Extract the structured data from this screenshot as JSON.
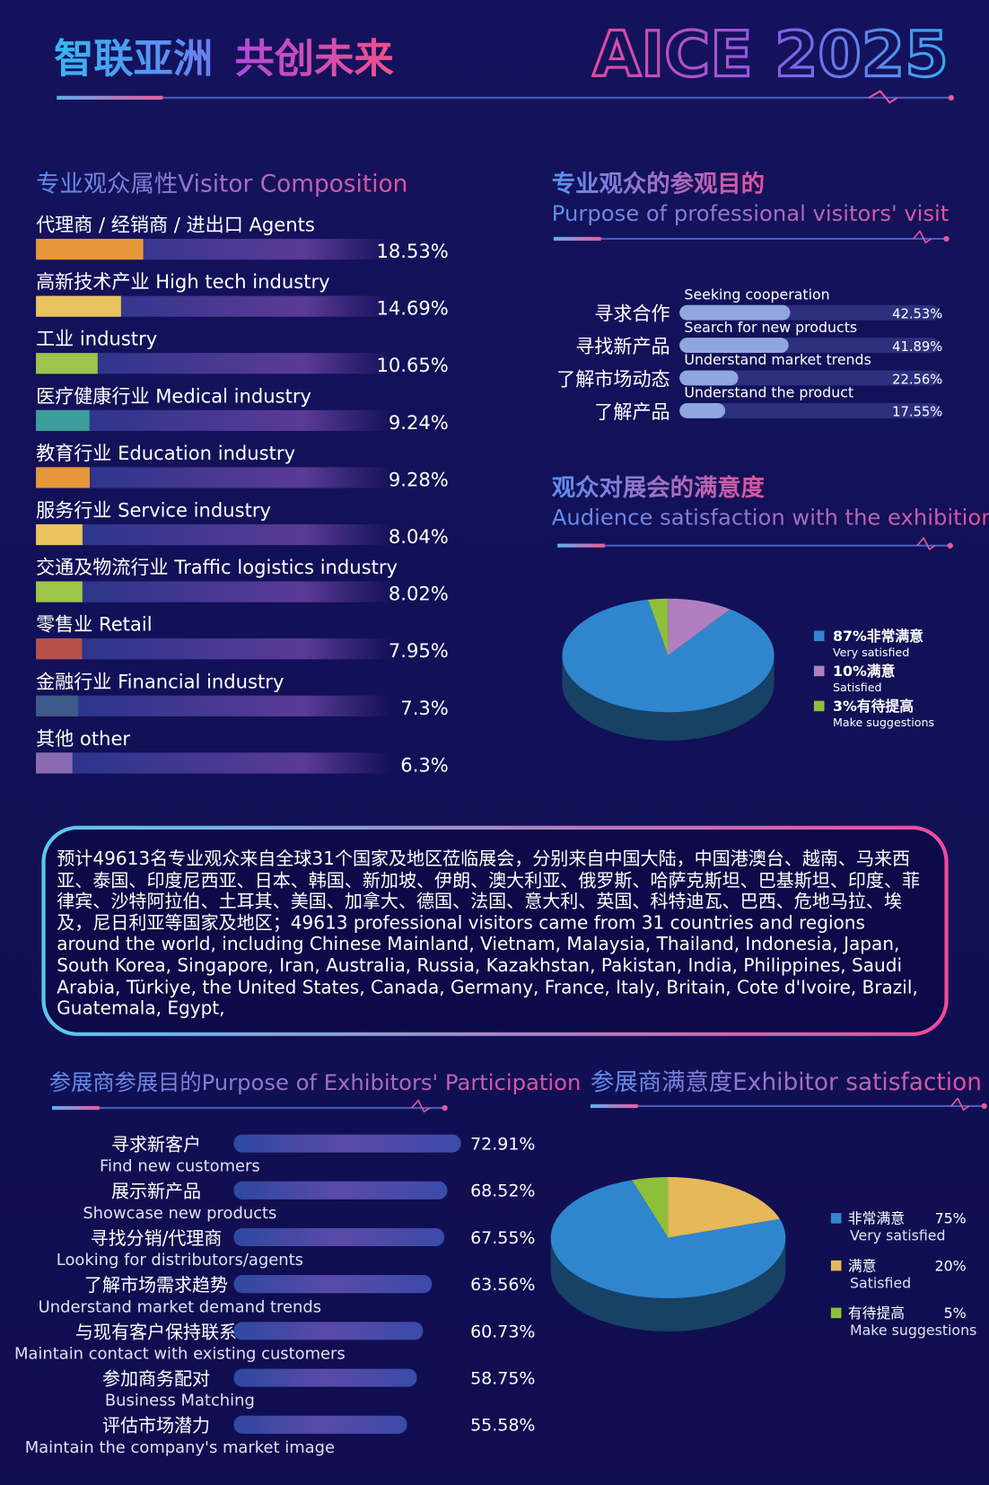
{
  "header": {
    "slogan": [
      "智联亚洲",
      "共创未来"
    ],
    "logo": "AICE 2025"
  },
  "chart_data": [
    {
      "type": "bar",
      "title": "专业观众属性Visitor Composition",
      "categories": [
        "代理商 / 经销商 / 进出口 Agents",
        "高新技术产业 High tech industry",
        "工业 industry",
        "医疗健康行业 Medical industry",
        "教育行业 Education industry",
        "服务行业 Service industry",
        "交通及物流行业 Traffic logistics industry",
        "零售业 Retail",
        "金融行业 Financial industry",
        "其他 other"
      ],
      "values": [
        18.53,
        14.69,
        10.65,
        9.24,
        9.28,
        8.04,
        8.02,
        7.95,
        7.3,
        6.3
      ],
      "value_labels": [
        "18.53%",
        "14.69%",
        "10.65%",
        "9.24%",
        "9.28%",
        "8.04%",
        "8.02%",
        "7.95%",
        "7.3%",
        "6.3%"
      ],
      "colors": [
        "#e8963a",
        "#e9c35e",
        "#9ec44a",
        "#3a9e9a",
        "#e8963a",
        "#e9c35e",
        "#9ec44a",
        "#b8504a",
        "#3e5a8a",
        "#8a6ab0"
      ],
      "xlim": [
        0,
        60
      ]
    },
    {
      "type": "bar",
      "title": "专业观众的参观目的",
      "subtitle": "Purpose of professional visitors' visit",
      "categories": [
        "寻求合作",
        "寻找新产品",
        "了解市场动态",
        "了解产品"
      ],
      "categories_en": [
        "Seeking cooperation",
        "Search for new products",
        "Understand market trends",
        "Understand the product"
      ],
      "values": [
        42.53,
        41.89,
        22.56,
        17.55
      ],
      "value_labels": [
        "42.53%",
        "41.89%",
        "22.56%",
        "17.55%"
      ],
      "color": "#8fa6df",
      "xlim": [
        0,
        100
      ]
    },
    {
      "type": "pie",
      "title": "观众对展会的满意度",
      "subtitle": "Audience satisfaction with the exhibition",
      "categories": [
        "87%非常满意",
        "10%满意",
        "3%有待提高"
      ],
      "categories_en": [
        "Very satisfied",
        "Satisfied",
        "Make suggestions"
      ],
      "values": [
        87,
        10,
        3
      ],
      "colors": [
        "#2f86cf",
        "#b07fc0",
        "#8fbf3a"
      ]
    },
    {
      "type": "bar",
      "title": "参展商参展目的Purpose of Exhibitors' Participation",
      "categories": [
        "寻求新客户",
        "展示新产品",
        "寻找分销/代理商",
        "了解市场需求趋势",
        "与现有客户保持联系",
        "参加商务配对",
        "评估市场潜力"
      ],
      "categories_en": [
        "Find new customers",
        "Showcase new products",
        "Looking for distributors/agents",
        "Understand market demand trends",
        "Maintain contact with existing customers",
        "Business Matching",
        "Maintain the company's market image"
      ],
      "values": [
        72.91,
        68.52,
        67.55,
        63.56,
        60.73,
        58.75,
        55.58
      ],
      "value_labels": [
        "72.91%",
        "68.52%",
        "67.55%",
        "63.56%",
        "60.73%",
        "58.75%",
        "55.58%"
      ],
      "xlim": [
        0,
        75
      ]
    },
    {
      "type": "pie",
      "title": "参展商满意度Exhibitor satisfaction",
      "categories": [
        "非常满意",
        "满意",
        "有待提高"
      ],
      "categories_en": [
        "Very satisfied",
        "Satisfied",
        "Make suggestions"
      ],
      "values": [
        75,
        20,
        5
      ],
      "value_labels": [
        "75%",
        "20%",
        "5%"
      ],
      "colors": [
        "#2f86cf",
        "#e6b85a",
        "#8fbf3a"
      ]
    }
  ],
  "paragraph": "预计49613名专业观众来自全球31个国家及地区莅临展会，分别来自中国大陆，中国港澳台、越南、马来西亚、泰国、印度尼西亚、日本、韩国、新加坡、伊朗、澳大利亚、俄罗斯、哈萨克斯坦、巴基斯坦、印度、菲律宾、沙特阿拉伯、土耳其、美国、加拿大、德国、法国、意大利、英国、科特迪瓦、巴西、危地马拉、埃及，尼日利亚等国家及地区；49613 professional visitors came from 31 countries and regions around the world, including Chinese Mainland, Vietnam, Malaysia, Thailand, Indonesia, Japan, South Korea, Singapore, Iran, Australia, Russia, Kazakhstan, Pakistan, India, Philippines, Saudi Arabia, Türkiye, the United States, Canada, Germany, France, Italy, Britain, Cote d'Ivoire, Brazil, Guatemala, Egypt,"
}
